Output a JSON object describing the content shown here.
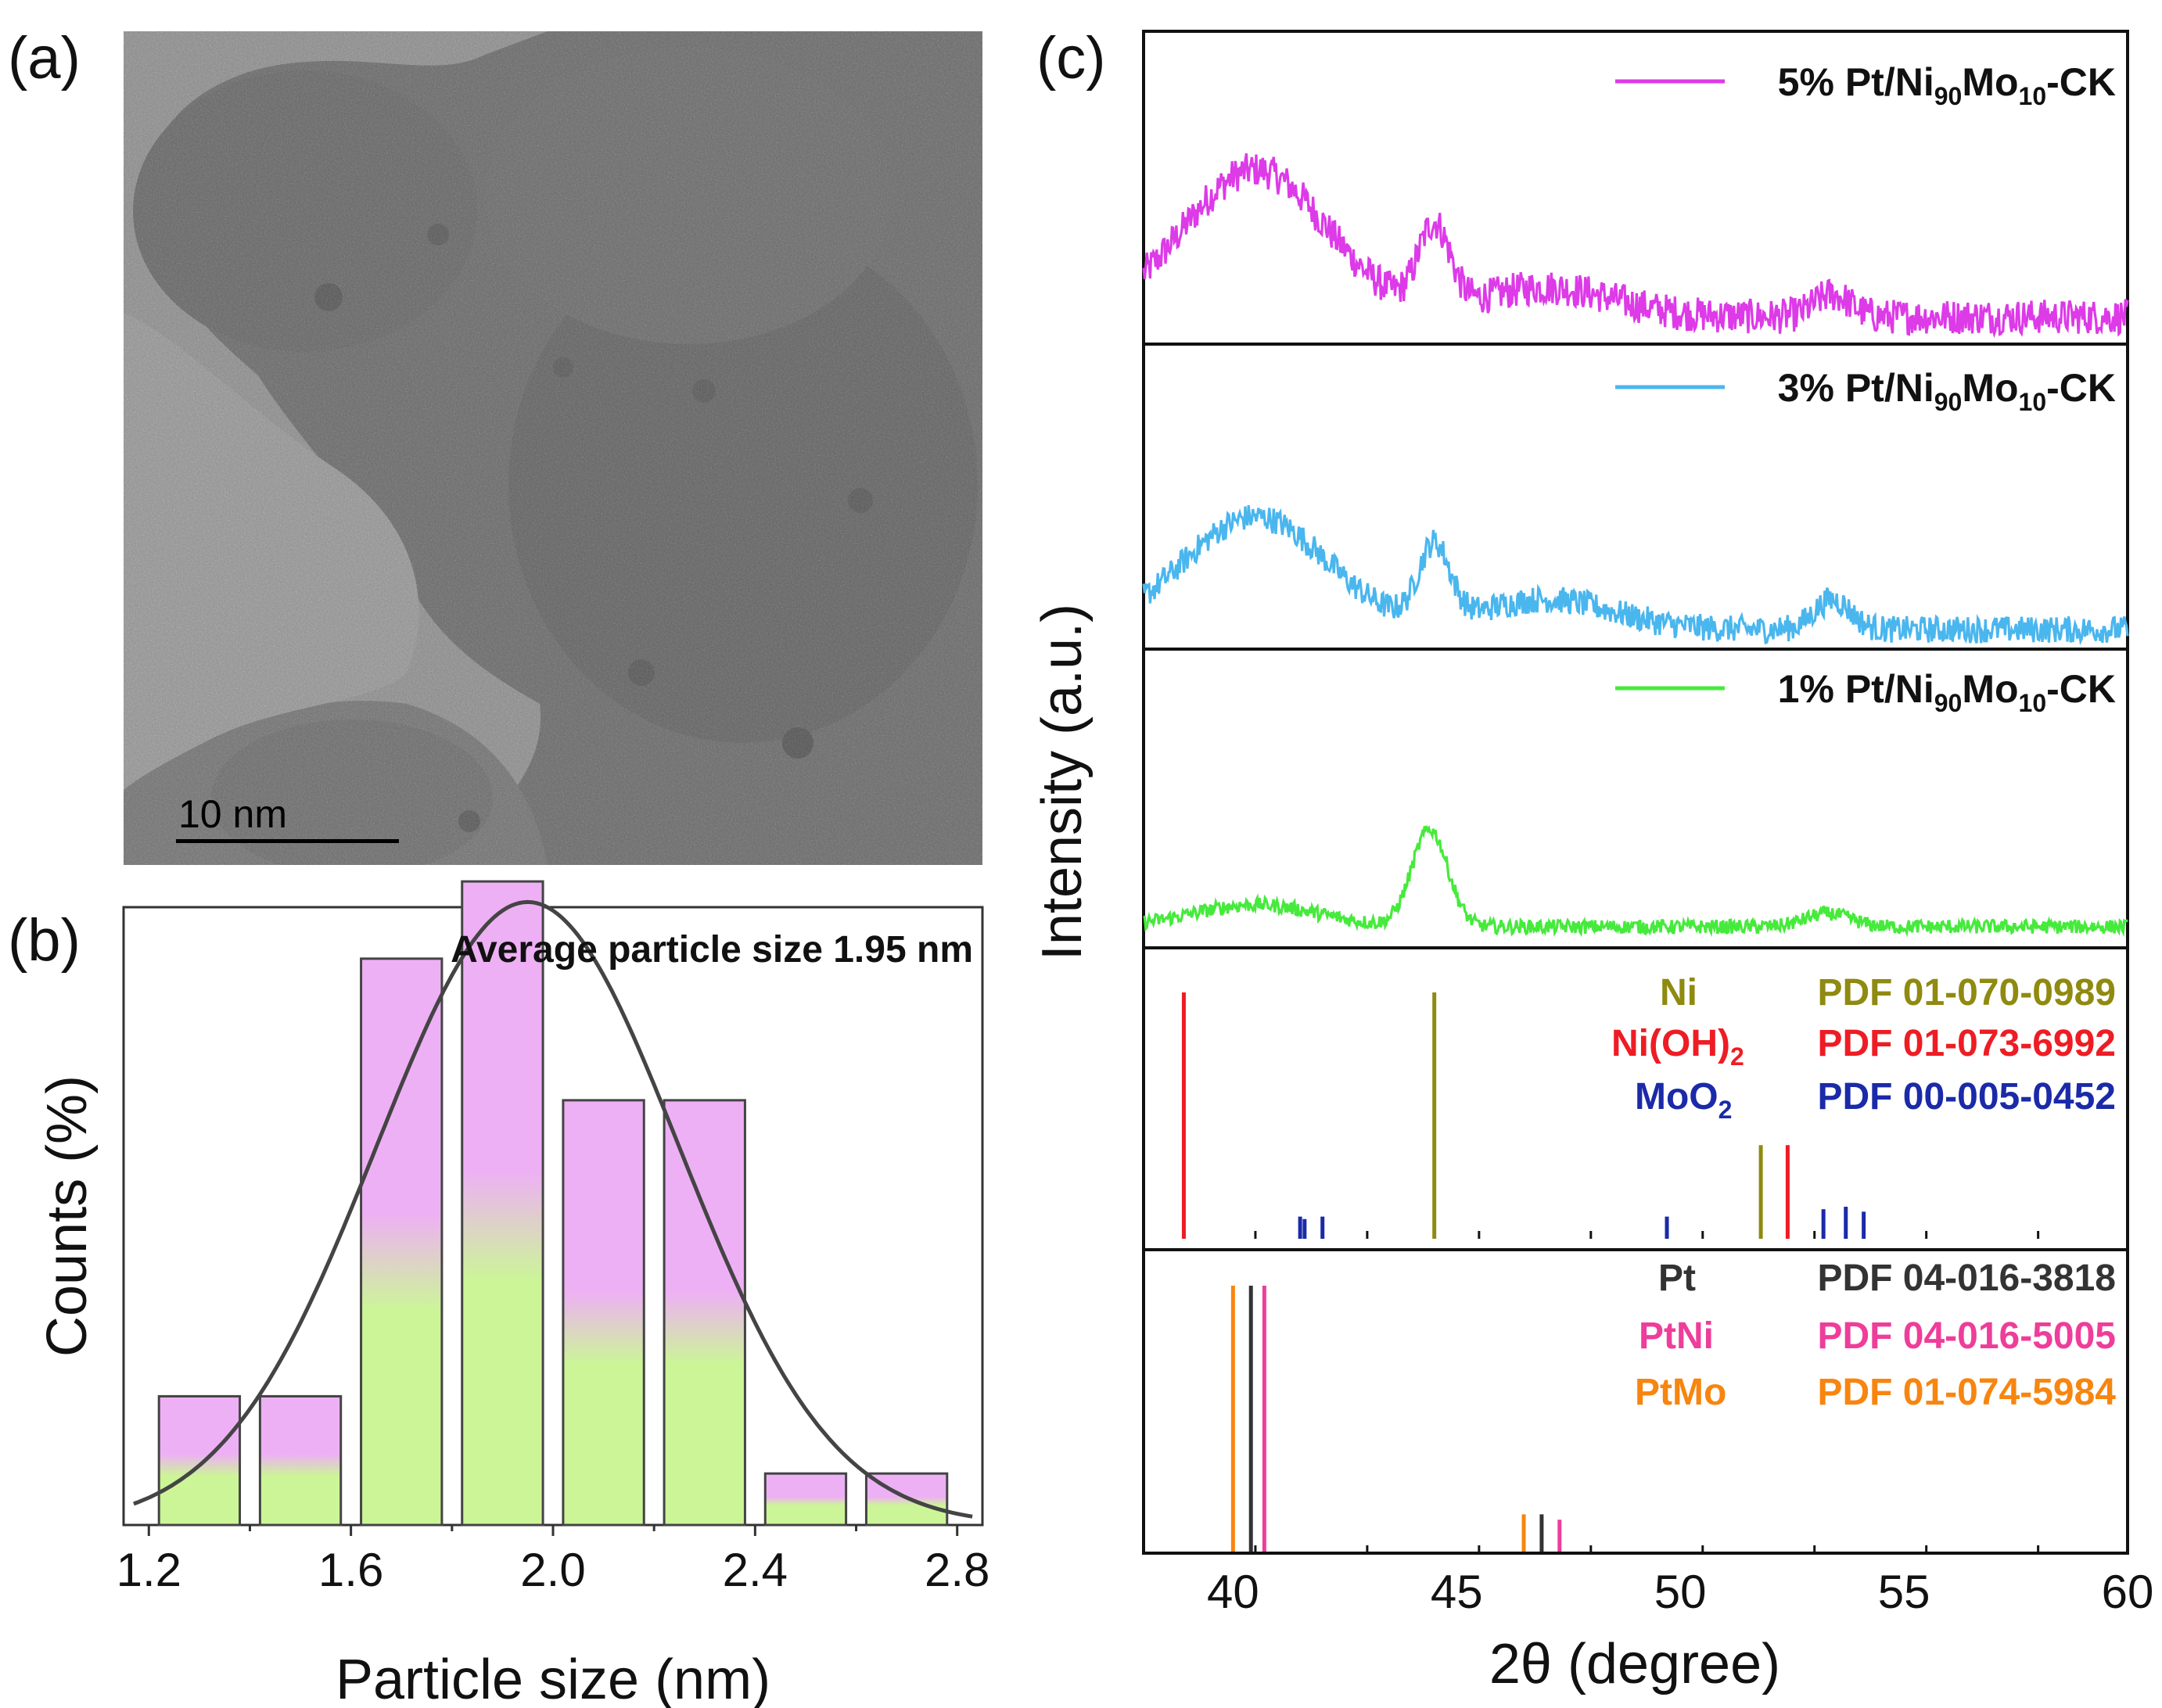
{
  "panels": {
    "a": {
      "label": "(a)",
      "scale_bar": "10 nm"
    },
    "b": {
      "label": "(b)"
    },
    "c": {
      "label": "(c)"
    }
  },
  "colors": {
    "bar_top": "#eeb0f5",
    "bar_bottom": "#ccf598",
    "fit_curve": "#444444",
    "s5": "#dd3ae8",
    "s3": "#4ab6ee",
    "s1": "#46ea3c",
    "Ni": "#8f8a10",
    "NiOH2": "#ee1c24",
    "MoO2": "#1a2aa8",
    "Pt": "#333333",
    "PtNi": "#ee3d9a",
    "PtMo": "#f7850f"
  },
  "chart_data": [
    {
      "type": "bar",
      "panel": "b",
      "title": "Average particle size 1.95 nm",
      "xlabel": "Particle size (nm)",
      "ylabel": "Counts (%)",
      "xlim": [
        1.15,
        2.85
      ],
      "ylim": [
        0,
        24
      ],
      "x_ticks": [
        "1.2",
        "1.6",
        "2.0",
        "2.4",
        "2.8"
      ],
      "bins": [
        [
          1.22,
          1.38
        ],
        [
          1.42,
          1.58
        ],
        [
          1.62,
          1.78
        ],
        [
          1.82,
          1.98
        ],
        [
          2.02,
          2.18
        ],
        [
          2.22,
          2.38
        ],
        [
          2.42,
          2.58
        ],
        [
          2.62,
          2.78
        ]
      ],
      "values": [
        5,
        5,
        22,
        25,
        16.5,
        16.5,
        2,
        2
      ],
      "fit": {
        "type": "gaussian",
        "mean": 1.95,
        "sigma": 0.3,
        "amplitude": 24.2
      }
    },
    {
      "type": "line",
      "panel": "c",
      "xlabel": "2θ (degree)",
      "ylabel": "Intensity (a.u.)",
      "xlim": [
        38,
        60
      ],
      "x_ticks": [
        "40",
        "45",
        "50",
        "55",
        "60"
      ],
      "series": [
        {
          "name": "5% Pt/Ni90Mo10-CK",
          "legend": {
            "pre": "5% Pt/Ni",
            "sub1": "90",
            "mid": "Mo",
            "sub2": "10",
            "post": "-CK"
          },
          "peaks": [
            [
              40.5,
              1.6,
              1.0
            ],
            [
              44.5,
              0.35,
              0.55
            ],
            [
              47,
              1.5,
              0.2
            ],
            [
              53.4,
              0.4,
              0.15
            ]
          ],
          "noise": 0.24,
          "baseline": 0.0
        },
        {
          "name": "3% Pt/Ni90Mo10-CK",
          "legend": {
            "pre": "3% Pt/Ni",
            "sub1": "90",
            "mid": "Mo",
            "sub2": "10",
            "post": "-CK"
          },
          "peaks": [
            [
              40.5,
              1.6,
              0.75
            ],
            [
              44.5,
              0.35,
              0.5
            ],
            [
              47,
              1.5,
              0.2
            ],
            [
              53.4,
              0.4,
              0.2
            ]
          ],
          "noise": 0.18,
          "baseline": 0.0
        },
        {
          "name": "1% Pt/Ni90Mo10-CK",
          "legend": {
            "pre": "1% Pt/Ni",
            "sub1": "90",
            "mid": "Mo",
            "sub2": "10",
            "post": "-CK"
          },
          "peaks": [
            [
              40.5,
              1.4,
              0.25
            ],
            [
              44.4,
              0.4,
              1.1
            ],
            [
              53.3,
              0.5,
              0.15
            ]
          ],
          "noise": 0.16,
          "baseline": 0.0
        }
      ],
      "references": [
        {
          "name": "Ni",
          "pdf": "PDF 01-070-0989",
          "lines": [
            [
              44.5,
              1.0
            ],
            [
              51.8,
              0.38
            ]
          ]
        },
        {
          "name": "Ni(OH)2",
          "label": {
            "base": "Ni(OH)",
            "sub": "2"
          },
          "pdf": "PDF 01-073-6992",
          "lines": [
            [
              38.9,
              1.0
            ],
            [
              52.4,
              0.38
            ]
          ]
        },
        {
          "name": "MoO2",
          "label": {
            "base": "MoO",
            "sub": "2"
          },
          "pdf": "PDF 00-005-0452",
          "lines": [
            [
              41.5,
              0.09
            ],
            [
              41.6,
              0.08
            ],
            [
              42.0,
              0.09
            ],
            [
              49.7,
              0.09
            ],
            [
              53.2,
              0.12
            ],
            [
              53.7,
              0.13
            ],
            [
              54.1,
              0.11
            ]
          ]
        },
        {
          "name": "Pt",
          "pdf": "PDF 04-016-3818",
          "lines": [
            [
              40.4,
              1.0
            ],
            [
              46.9,
              0.14
            ]
          ]
        },
        {
          "name": "PtNi",
          "pdf": "PDF 04-016-5005",
          "lines": [
            [
              40.7,
              1.0
            ],
            [
              47.3,
              0.12
            ]
          ]
        },
        {
          "name": "PtMo",
          "pdf": "PDF 01-074-5984",
          "lines": [
            [
              40.0,
              1.0
            ],
            [
              46.5,
              0.14
            ]
          ]
        }
      ]
    }
  ]
}
